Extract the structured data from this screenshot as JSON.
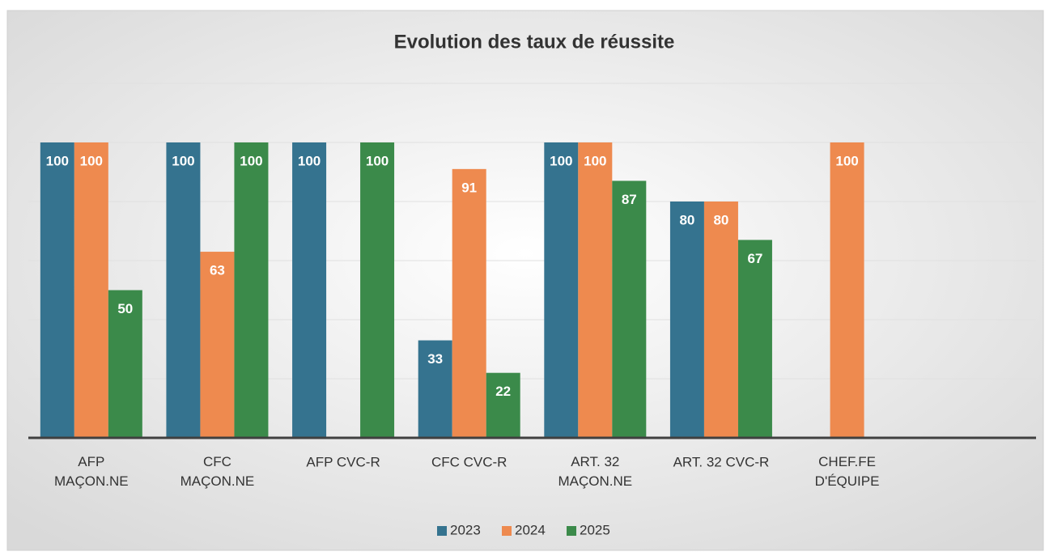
{
  "chart_data": {
    "type": "bar",
    "title": "Evolution des taux de réussite",
    "categories": [
      "AFP\nMAÇON.NE",
      "CFC\nMAÇON.NE",
      "AFP CVC-R",
      "CFC CVC-R",
      "ART. 32\nMAÇON.NE",
      "ART. 32 CVC-R",
      "CHEF.FE\nD'ÉQUIPE",
      null
    ],
    "series": [
      {
        "name": "2023",
        "color": "#35738f",
        "values": [
          100,
          100,
          100,
          33,
          100,
          80,
          null,
          null
        ]
      },
      {
        "name": "2024",
        "color": "#ee8a4f",
        "values": [
          100,
          63,
          null,
          91,
          100,
          80,
          100,
          null
        ]
      },
      {
        "name": "2025",
        "color": "#3b8a4a",
        "values": [
          50,
          100,
          100,
          22,
          87,
          67,
          null,
          null
        ]
      }
    ],
    "ylim": [
      0,
      120
    ],
    "yticks": [
      0,
      20,
      40,
      60,
      80,
      100,
      120
    ],
    "grid": true,
    "legend": "bottom"
  }
}
